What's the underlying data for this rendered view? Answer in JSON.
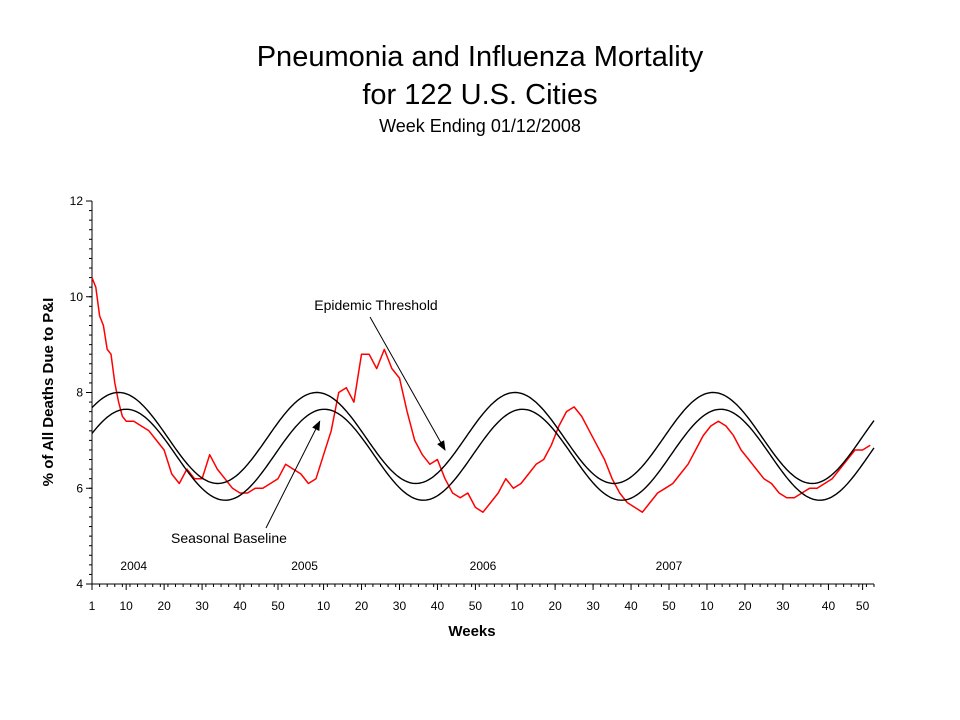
{
  "header": {
    "title_line1": "Pneumonia and Influenza Mortality",
    "title_line2": "for 122 U.S. Cities",
    "subtitle": "Week Ending 01/12/2008"
  },
  "chart_data": {
    "type": "line",
    "xlabel": "Weeks",
    "ylabel": "% of All Deaths Due to P&I",
    "ylim": [
      4,
      12
    ],
    "yticks": [
      4,
      6,
      8,
      10,
      12
    ],
    "x_ticks": [
      {
        "week": 1,
        "label": "1"
      },
      {
        "week": 10,
        "label": "10"
      },
      {
        "week": 20,
        "label": "20"
      },
      {
        "week": 30,
        "label": "30"
      },
      {
        "week": 40,
        "label": "40"
      },
      {
        "week": 50,
        "label": "50"
      },
      {
        "week": 62,
        "label": "10"
      },
      {
        "week": 72,
        "label": "20"
      },
      {
        "week": 82,
        "label": "30"
      },
      {
        "week": 92,
        "label": "40"
      },
      {
        "week": 102,
        "label": "50"
      },
      {
        "week": 113,
        "label": "10"
      },
      {
        "week": 123,
        "label": "20"
      },
      {
        "week": 133,
        "label": "30"
      },
      {
        "week": 143,
        "label": "40"
      },
      {
        "week": 153,
        "label": "50"
      },
      {
        "week": 163,
        "label": "10"
      },
      {
        "week": 173,
        "label": "20"
      },
      {
        "week": 183,
        "label": "30"
      },
      {
        "week": 195,
        "label": "40"
      },
      {
        "week": 204,
        "label": "50"
      }
    ],
    "years": [
      {
        "label": "2004",
        "week": 12
      },
      {
        "label": "2005",
        "week": 57
      },
      {
        "label": "2006",
        "week": 104
      },
      {
        "label": "2007",
        "week": 153
      }
    ],
    "annotations": [
      {
        "text": "Epidemic Threshold",
        "points_to": {
          "week": 94,
          "value": 6.8
        }
      },
      {
        "text": "Seasonal Baseline",
        "points_to": {
          "week": 61,
          "value": 7.4
        }
      }
    ],
    "series": [
      {
        "role": "observed",
        "color": "#ff0000",
        "points": [
          [
            1,
            10.4
          ],
          [
            2,
            10.2
          ],
          [
            3,
            9.6
          ],
          [
            4,
            9.4
          ],
          [
            5,
            8.9
          ],
          [
            6,
            8.8
          ],
          [
            7,
            8.2
          ],
          [
            8,
            7.8
          ],
          [
            9,
            7.5
          ],
          [
            10,
            7.4
          ],
          [
            12,
            7.4
          ],
          [
            14,
            7.3
          ],
          [
            16,
            7.2
          ],
          [
            18,
            7.0
          ],
          [
            20,
            6.8
          ],
          [
            22,
            6.3
          ],
          [
            24,
            6.1
          ],
          [
            26,
            6.4
          ],
          [
            28,
            6.2
          ],
          [
            30,
            6.2
          ],
          [
            32,
            6.7
          ],
          [
            34,
            6.4
          ],
          [
            36,
            6.2
          ],
          [
            38,
            6.0
          ],
          [
            40,
            5.9
          ],
          [
            42,
            5.9
          ],
          [
            44,
            6.0
          ],
          [
            46,
            6.0
          ],
          [
            48,
            6.1
          ],
          [
            50,
            6.2
          ],
          [
            52,
            6.5
          ],
          [
            54,
            6.4
          ],
          [
            56,
            6.3
          ],
          [
            58,
            6.1
          ],
          [
            60,
            6.2
          ],
          [
            62,
            6.7
          ],
          [
            64,
            7.2
          ],
          [
            66,
            8.0
          ],
          [
            68,
            8.1
          ],
          [
            70,
            7.8
          ],
          [
            72,
            8.8
          ],
          [
            74,
            8.8
          ],
          [
            76,
            8.5
          ],
          [
            78,
            8.9
          ],
          [
            80,
            8.5
          ],
          [
            82,
            8.3
          ],
          [
            84,
            7.6
          ],
          [
            86,
            7.0
          ],
          [
            88,
            6.7
          ],
          [
            90,
            6.5
          ],
          [
            92,
            6.6
          ],
          [
            94,
            6.2
          ],
          [
            96,
            5.9
          ],
          [
            98,
            5.8
          ],
          [
            100,
            5.9
          ],
          [
            102,
            5.6
          ],
          [
            104,
            5.5
          ],
          [
            106,
            5.7
          ],
          [
            108,
            5.9
          ],
          [
            110,
            6.2
          ],
          [
            112,
            6.0
          ],
          [
            114,
            6.1
          ],
          [
            116,
            6.3
          ],
          [
            118,
            6.5
          ],
          [
            120,
            6.6
          ],
          [
            122,
            6.9
          ],
          [
            124,
            7.3
          ],
          [
            126,
            7.6
          ],
          [
            128,
            7.7
          ],
          [
            130,
            7.5
          ],
          [
            132,
            7.2
          ],
          [
            134,
            6.9
          ],
          [
            136,
            6.6
          ],
          [
            138,
            6.2
          ],
          [
            140,
            5.9
          ],
          [
            142,
            5.7
          ],
          [
            144,
            5.6
          ],
          [
            146,
            5.5
          ],
          [
            148,
            5.7
          ],
          [
            150,
            5.9
          ],
          [
            152,
            6.0
          ],
          [
            154,
            6.1
          ],
          [
            156,
            6.3
          ],
          [
            158,
            6.5
          ],
          [
            160,
            6.8
          ],
          [
            162,
            7.1
          ],
          [
            164,
            7.3
          ],
          [
            166,
            7.4
          ],
          [
            168,
            7.3
          ],
          [
            170,
            7.1
          ],
          [
            172,
            6.8
          ],
          [
            174,
            6.6
          ],
          [
            176,
            6.4
          ],
          [
            178,
            6.2
          ],
          [
            180,
            6.1
          ],
          [
            182,
            5.9
          ],
          [
            184,
            5.8
          ],
          [
            186,
            5.8
          ],
          [
            188,
            5.9
          ],
          [
            190,
            6.0
          ],
          [
            192,
            6.0
          ],
          [
            194,
            6.1
          ],
          [
            196,
            6.2
          ],
          [
            198,
            6.4
          ],
          [
            200,
            6.6
          ],
          [
            202,
            6.8
          ],
          [
            204,
            6.8
          ],
          [
            206,
            6.9
          ]
        ]
      },
      {
        "role": "threshold",
        "color": "#000000",
        "mean": 7.05,
        "amplitude": 0.95,
        "peak_week": 8,
        "period": 52.2
      },
      {
        "role": "baseline",
        "color": "#000000",
        "mean": 6.7,
        "amplitude": 0.95,
        "peak_week": 10,
        "period": 52.2
      }
    ]
  }
}
